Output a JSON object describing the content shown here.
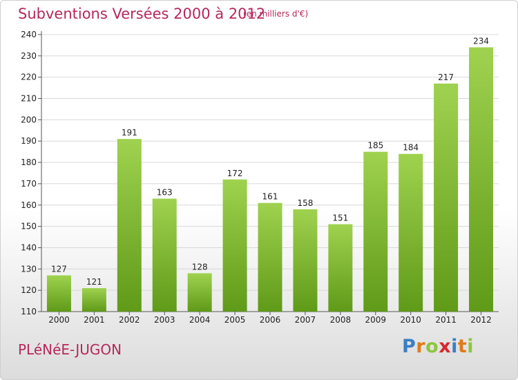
{
  "header": {
    "title": "Subventions Versées 2000 à 2012",
    "subtitle": "(en milliers d'€)"
  },
  "footer": {
    "commune": "PLéNéE-JUGON",
    "logo_letters": [
      {
        "ch": "P",
        "color": "#3a7fc4"
      },
      {
        "ch": "r",
        "color": "#e07a1a"
      },
      {
        "ch": "o",
        "color": "#8dc63f"
      },
      {
        "ch": "x",
        "color": "#d9262d"
      },
      {
        "ch": "i",
        "color": "#3a7fc4"
      },
      {
        "ch": "t",
        "color": "#e07a1a"
      },
      {
        "ch": "i",
        "color": "#8dc63f"
      }
    ]
  },
  "colors": {
    "title": "#b5285a",
    "bar_top": "#9fd24f",
    "bar_bottom": "#5f9a18",
    "grid": "#d8d8d8"
  },
  "chart_data": {
    "type": "bar",
    "categories": [
      "2000",
      "2001",
      "2002",
      "2003",
      "2004",
      "2005",
      "2006",
      "2007",
      "2008",
      "2009",
      "2010",
      "2011",
      "2012"
    ],
    "values": [
      127,
      121,
      191,
      163,
      128,
      172,
      161,
      158,
      151,
      185,
      184,
      217,
      234
    ],
    "title": "Subventions Versées 2000 à 2012",
    "subtitle": "(en milliers d'€)",
    "xlabel": "",
    "ylabel": "",
    "ylim": [
      110,
      240
    ],
    "yticks": [
      110,
      120,
      130,
      140,
      150,
      160,
      170,
      180,
      190,
      200,
      210,
      220,
      230,
      240
    ],
    "grid": true,
    "data_labels": true
  }
}
